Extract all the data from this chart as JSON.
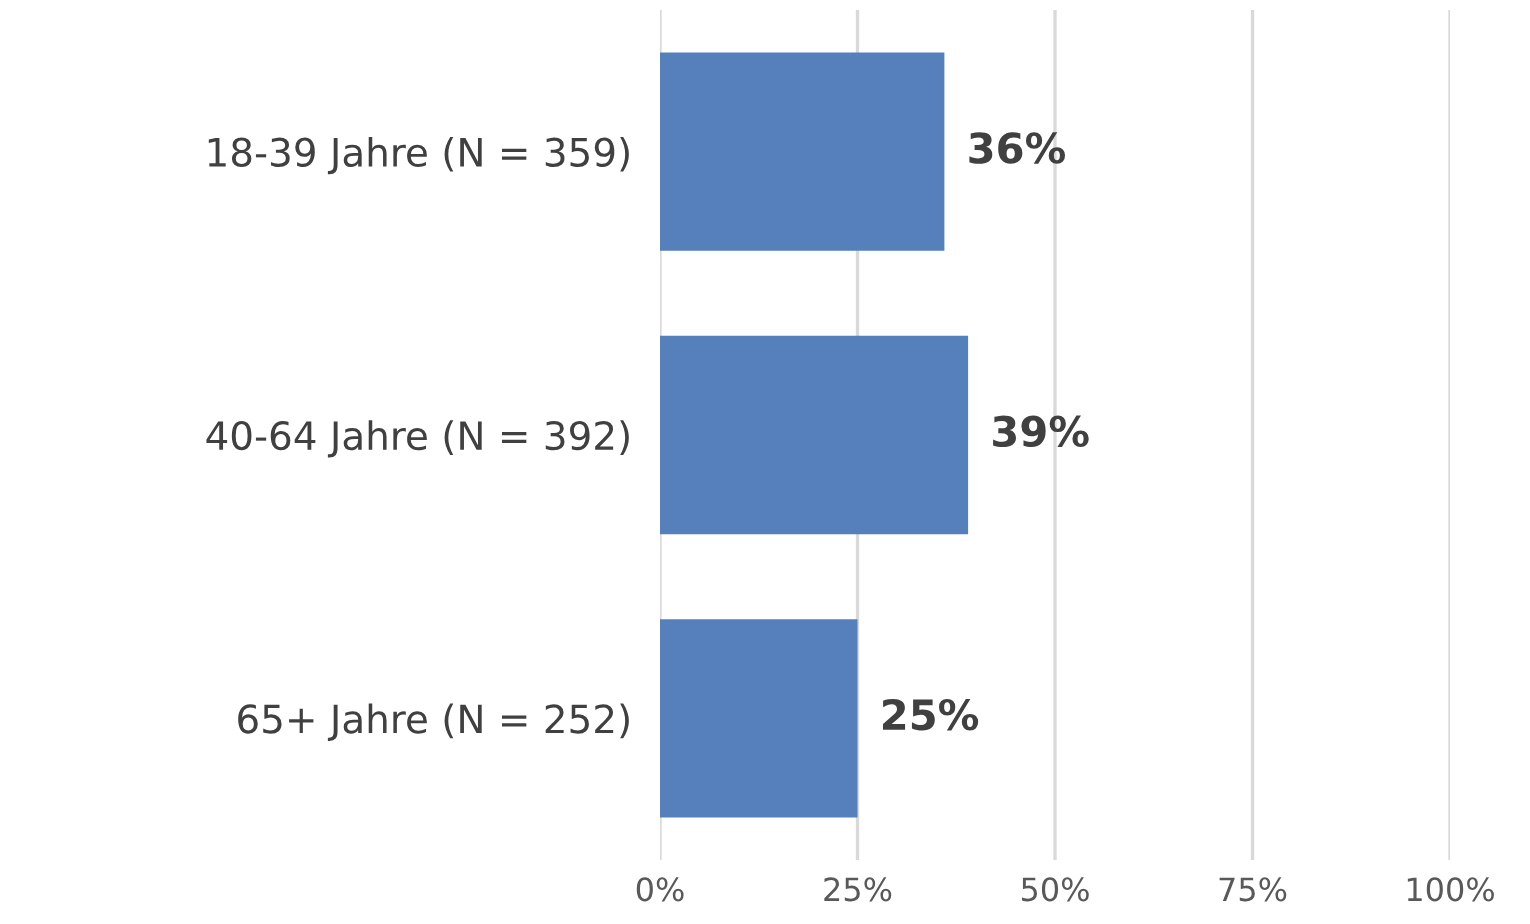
{
  "chart_data": {
    "type": "bar",
    "orientation": "horizontal",
    "categories": [
      "18-39 Jahre (N = 359)",
      "40-64 Jahre (N = 392)",
      "65+ Jahre (N = 252)"
    ],
    "values": [
      36,
      39,
      25
    ],
    "value_labels": [
      "36%",
      "39%",
      "25%"
    ],
    "color": "#5680bb",
    "xlim": [
      0,
      100
    ],
    "xticks": [
      {
        "value": 0,
        "label": "0%"
      },
      {
        "value": 25,
        "label": "25%"
      },
      {
        "value": 50,
        "label": "50%"
      },
      {
        "value": 75,
        "label": "75%"
      },
      {
        "value": 100,
        "label": "100%"
      }
    ],
    "grid": "x"
  }
}
